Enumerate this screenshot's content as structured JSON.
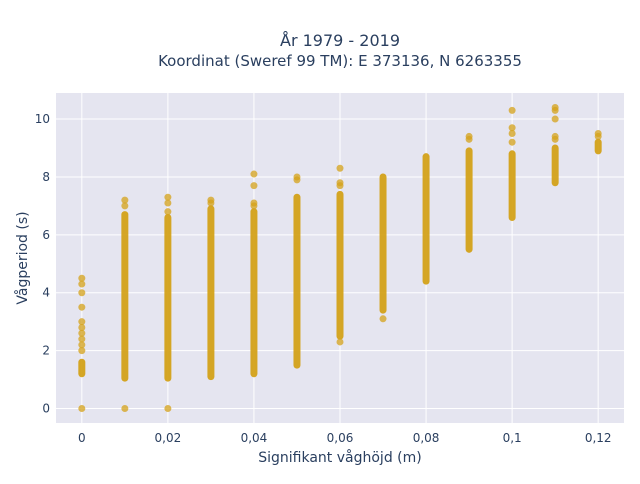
{
  "chart_data": {
    "type": "scatter",
    "title_line1": "År 1979 - 2019",
    "title_line2": "Koordinat (Sweref 99 TM): E 373136, N 6263355",
    "xlabel": "Signifikant våghöjd (m)",
    "ylabel": "Vågperiod (s)",
    "xlim": [
      -0.006,
      0.126
    ],
    "ylim": [
      -0.5,
      10.9
    ],
    "x_ticks": [
      0,
      0.02,
      0.04,
      0.06,
      0.08,
      0.1,
      0.12
    ],
    "x_tick_labels": [
      "0",
      "0,02",
      "0,04",
      "0,06",
      "0,08",
      "0,1",
      "0,12"
    ],
    "y_ticks": [
      0,
      2,
      4,
      6,
      8,
      10
    ],
    "y_tick_labels": [
      "0",
      "2",
      "4",
      "6",
      "8",
      "10"
    ],
    "grid": true,
    "marker_color": "#d4a21a",
    "plot_bg": "#e5e5f0",
    "x_values": [
      0,
      0.01,
      0.02,
      0.03,
      0.04,
      0.05,
      0.06,
      0.07,
      0.08,
      0.09,
      0.1,
      0.11,
      0.12
    ],
    "dense_ranges": [
      {
        "x": 0,
        "ymin": 1.2,
        "ymax": 1.6
      },
      {
        "x": 0.01,
        "ymin": 1.05,
        "ymax": 6.7
      },
      {
        "x": 0.02,
        "ymin": 1.05,
        "ymax": 6.6
      },
      {
        "x": 0.03,
        "ymin": 1.1,
        "ymax": 6.9
      },
      {
        "x": 0.04,
        "ymin": 1.2,
        "ymax": 6.8
      },
      {
        "x": 0.05,
        "ymin": 1.5,
        "ymax": 7.3
      },
      {
        "x": 0.06,
        "ymin": 2.5,
        "ymax": 7.4
      },
      {
        "x": 0.07,
        "ymin": 3.4,
        "ymax": 8.0
      },
      {
        "x": 0.08,
        "ymin": 4.4,
        "ymax": 8.7
      },
      {
        "x": 0.09,
        "ymin": 5.5,
        "ymax": 8.9
      },
      {
        "x": 0.1,
        "ymin": 6.6,
        "ymax": 8.8
      },
      {
        "x": 0.11,
        "ymin": 7.8,
        "ymax": 9.0
      },
      {
        "x": 0.12,
        "ymin": 8.9,
        "ymax": 9.2
      }
    ],
    "outlier_points": [
      {
        "x": 0,
        "y": 0
      },
      {
        "x": 0,
        "y": 2.0
      },
      {
        "x": 0,
        "y": 2.2
      },
      {
        "x": 0,
        "y": 2.4
      },
      {
        "x": 0,
        "y": 2.6
      },
      {
        "x": 0,
        "y": 2.8
      },
      {
        "x": 0,
        "y": 3.0
      },
      {
        "x": 0,
        "y": 3.5
      },
      {
        "x": 0,
        "y": 4.0
      },
      {
        "x": 0,
        "y": 4.3
      },
      {
        "x": 0,
        "y": 4.5
      },
      {
        "x": 0.01,
        "y": 0
      },
      {
        "x": 0.01,
        "y": 7.0
      },
      {
        "x": 0.01,
        "y": 7.2
      },
      {
        "x": 0.02,
        "y": 0
      },
      {
        "x": 0.02,
        "y": 6.8
      },
      {
        "x": 0.02,
        "y": 7.1
      },
      {
        "x": 0.02,
        "y": 7.3
      },
      {
        "x": 0.03,
        "y": 7.1
      },
      {
        "x": 0.03,
        "y": 7.2
      },
      {
        "x": 0.04,
        "y": 7.0
      },
      {
        "x": 0.04,
        "y": 7.1
      },
      {
        "x": 0.04,
        "y": 7.7
      },
      {
        "x": 0.04,
        "y": 8.1
      },
      {
        "x": 0.05,
        "y": 7.9
      },
      {
        "x": 0.05,
        "y": 8.0
      },
      {
        "x": 0.06,
        "y": 2.3
      },
      {
        "x": 0.06,
        "y": 7.7
      },
      {
        "x": 0.06,
        "y": 7.8
      },
      {
        "x": 0.06,
        "y": 8.3
      },
      {
        "x": 0.07,
        "y": 3.1
      },
      {
        "x": 0.09,
        "y": 9.3
      },
      {
        "x": 0.09,
        "y": 9.4
      },
      {
        "x": 0.1,
        "y": 9.2
      },
      {
        "x": 0.1,
        "y": 9.5
      },
      {
        "x": 0.1,
        "y": 9.7
      },
      {
        "x": 0.1,
        "y": 10.3
      },
      {
        "x": 0.11,
        "y": 9.3
      },
      {
        "x": 0.11,
        "y": 9.4
      },
      {
        "x": 0.11,
        "y": 10.0
      },
      {
        "x": 0.11,
        "y": 10.3
      },
      {
        "x": 0.11,
        "y": 10.4
      },
      {
        "x": 0.12,
        "y": 9.4
      },
      {
        "x": 0.12,
        "y": 9.5
      }
    ]
  }
}
